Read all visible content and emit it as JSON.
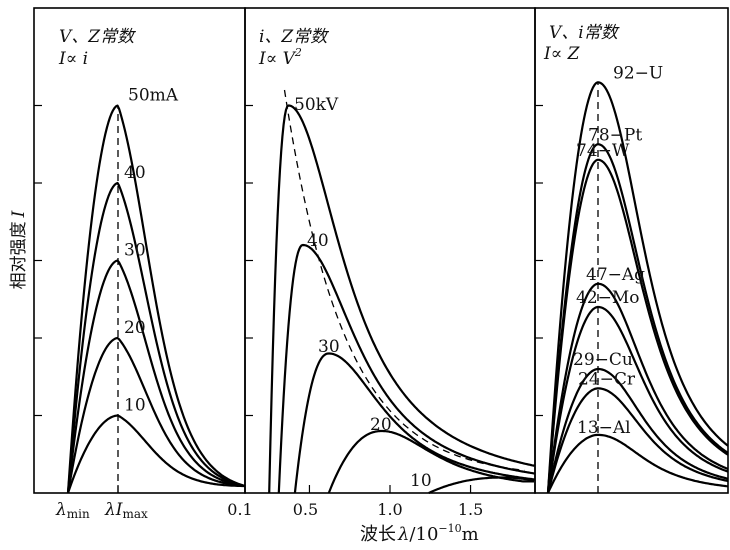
{
  "figure": {
    "ylabel": "相对强度",
    "ylabel_symbol": "I",
    "xlabel": "波长",
    "xlabel_symbol": "λ",
    "xlabel_unit": "/10",
    "xlabel_exp": "−10",
    "xlabel_m": "m"
  },
  "chart_data": [
    {
      "type": "line",
      "panel": "current",
      "header_line1": "V、Z常数",
      "header_line2": "I∝ i",
      "x_ticks": [
        "λmin",
        "λImax",
        "0.1"
      ],
      "x_tick_lambda": "λ",
      "x_tick_min": "min",
      "x_tick_imax_I": "I",
      "x_tick_max": "max",
      "x_tick_right": "0.1",
      "peak_lambda_dashed": true,
      "series": [
        {
          "name": "50mA",
          "label": "50mA",
          "peak": 5.0
        },
        {
          "name": "40",
          "label": "40",
          "peak": 4.0
        },
        {
          "name": "30",
          "label": "30",
          "peak": 3.0
        },
        {
          "name": "20",
          "label": "20",
          "peak": 2.0
        },
        {
          "name": "10",
          "label": "10",
          "peak": 1.0
        }
      ]
    },
    {
      "type": "line",
      "panel": "voltage",
      "header_line1": "i、Z常数",
      "header_line2": "I∝ V",
      "header_exp": "2",
      "x_ticks": [
        "0.5",
        "1.0",
        "1.5"
      ],
      "x_range": [
        0.1,
        1.9
      ],
      "peak_locus_dashed": true,
      "series": [
        {
          "name": "50kV",
          "label": "50kV",
          "lambda_min": 0.25,
          "lambda_peak": 0.37,
          "peak": 5.0
        },
        {
          "name": "40",
          "label": "40",
          "lambda_min": 0.31,
          "lambda_peak": 0.46,
          "peak": 3.2
        },
        {
          "name": "30",
          "label": "30",
          "lambda_min": 0.41,
          "lambda_peak": 0.62,
          "peak": 1.8
        },
        {
          "name": "20",
          "label": "20",
          "lambda_min": 0.62,
          "lambda_peak": 0.95,
          "peak": 0.8
        },
        {
          "name": "10",
          "label": "10",
          "lambda_min": 1.24,
          "lambda_peak": 1.7,
          "peak": 0.2
        }
      ]
    },
    {
      "type": "line",
      "panel": "target",
      "header_line1": "V、i常数",
      "header_line2": "I∝ Z",
      "peak_lambda_dashed": true,
      "series": [
        {
          "name": "92-U",
          "label": "92−U",
          "Z": 92,
          "peak": 5.3
        },
        {
          "name": "78-Pt",
          "label": "78−Pt",
          "Z": 78,
          "peak": 4.5
        },
        {
          "name": "74-W",
          "label": "74−W",
          "Z": 74,
          "peak": 4.3
        },
        {
          "name": "47-Ag",
          "label": "47−Ag",
          "Z": 47,
          "peak": 2.7
        },
        {
          "name": "42-Mo",
          "label": "42−Mo",
          "Z": 42,
          "peak": 2.4
        },
        {
          "name": "29-Cu",
          "label": "29−Cu",
          "Z": 29,
          "peak": 1.6
        },
        {
          "name": "24-Cr",
          "label": "24−Cr",
          "Z": 24,
          "peak": 1.35
        },
        {
          "name": "13-Al",
          "label": "13−Al",
          "Z": 13,
          "peak": 0.75
        }
      ]
    }
  ]
}
